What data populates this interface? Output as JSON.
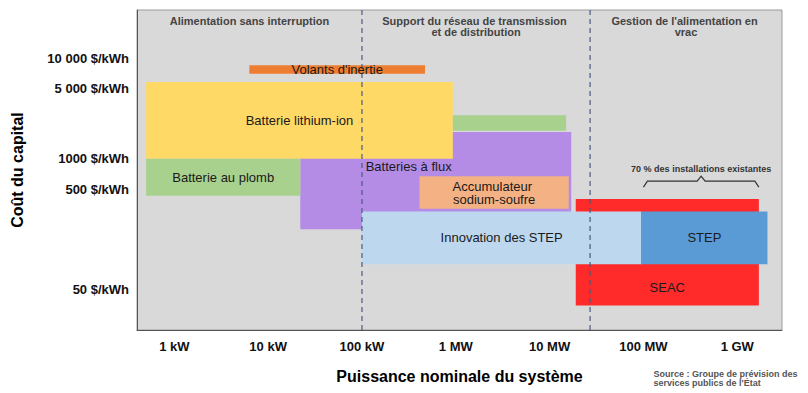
{
  "chart_data": {
    "type": "boxes",
    "xlabel": "Puissance nominale du système",
    "ylabel": "Coût du capital",
    "log": true,
    "grid": false,
    "xlim": [
      0.4,
      3000000
    ],
    "xticks": [
      {
        "value": 1,
        "label": "1 kW"
      },
      {
        "value": 10,
        "label": "10 kW"
      },
      {
        "value": 100,
        "label": "100 kW"
      },
      {
        "value": 1000,
        "label": "1 MW"
      },
      {
        "value": 10000,
        "label": "10 MW"
      },
      {
        "value": 100000,
        "label": "100 MW"
      },
      {
        "value": 1000000,
        "label": "1 GW"
      }
    ],
    "ylim": [
      20,
      30000
    ],
    "yticks": [
      {
        "value": 50,
        "label": "50 $/kWh"
      },
      {
        "value": 500,
        "label": "500 $/kWh"
      },
      {
        "value": 1000,
        "label": "1000 $/kWh"
      },
      {
        "value": 5000,
        "label": "5 000 $/kWh"
      },
      {
        "value": 10000,
        "label": "10 000 $/kWh"
      }
    ],
    "series": [
      {
        "name": "Batteries à flux",
        "color": "#B48CE6",
        "boxes": [
          {
            "x": [
              22,
              17000
            ],
            "y": [
              200,
              1850
            ]
          }
        ]
      },
      {
        "name": "Batterie lithium-ion",
        "color": "#FFD966",
        "boxes": [
          {
            "x": [
              0.5,
              930
            ],
            "y": [
              1000,
              5800
            ]
          }
        ]
      },
      {
        "name": "Batterie au plomb",
        "color": "#A9D18E",
        "boxes": [
          {
            "x": [
              0.5,
              22
            ],
            "y": [
              430,
              1000
            ]
          },
          {
            "x": [
              930,
              15000
            ],
            "y": [
              1900,
              2700
            ]
          }
        ]
      },
      {
        "name": "Volants d'inertie",
        "color": "#ED7D31",
        "boxes": [
          {
            "x": [
              6.3,
              470
            ],
            "y": [
              7000,
              8500
            ]
          }
        ]
      },
      {
        "name": "Accumulateur sodium-soufre",
        "color": "#F4B183",
        "boxes": [
          {
            "x": [
              410,
              16000
            ],
            "y": [
              320,
              670
            ]
          }
        ]
      },
      {
        "name": "SEAC",
        "color": "#FF2A2A",
        "boxes": [
          {
            "x": [
              19000,
              1700000
            ],
            "y": [
              35,
              400
            ]
          }
        ]
      },
      {
        "name": "Innovation des STEP",
        "color": "#BDD7EE",
        "boxes": [
          {
            "x": [
              100,
              95000
            ],
            "y": [
              90,
              300
            ]
          }
        ]
      },
      {
        "name": "STEP",
        "color": "#5B9BD5",
        "boxes": [
          {
            "x": [
              95000,
              2100000
            ],
            "y": [
              90,
              300
            ]
          }
        ]
      }
    ],
    "sections": {
      "dividers": [
        100,
        27000
      ],
      "labels": [
        "Alimentation sans interruption",
        "Support du réseau de transmission et de distribution",
        "Gestion de l'alimentation en vrac"
      ]
    },
    "annotation": {
      "text": "70 % des installations existantes",
      "x": [
        100000,
        1700000
      ],
      "y": 600
    },
    "source": "Source : Groupe de prévision des services publics de l'État"
  }
}
